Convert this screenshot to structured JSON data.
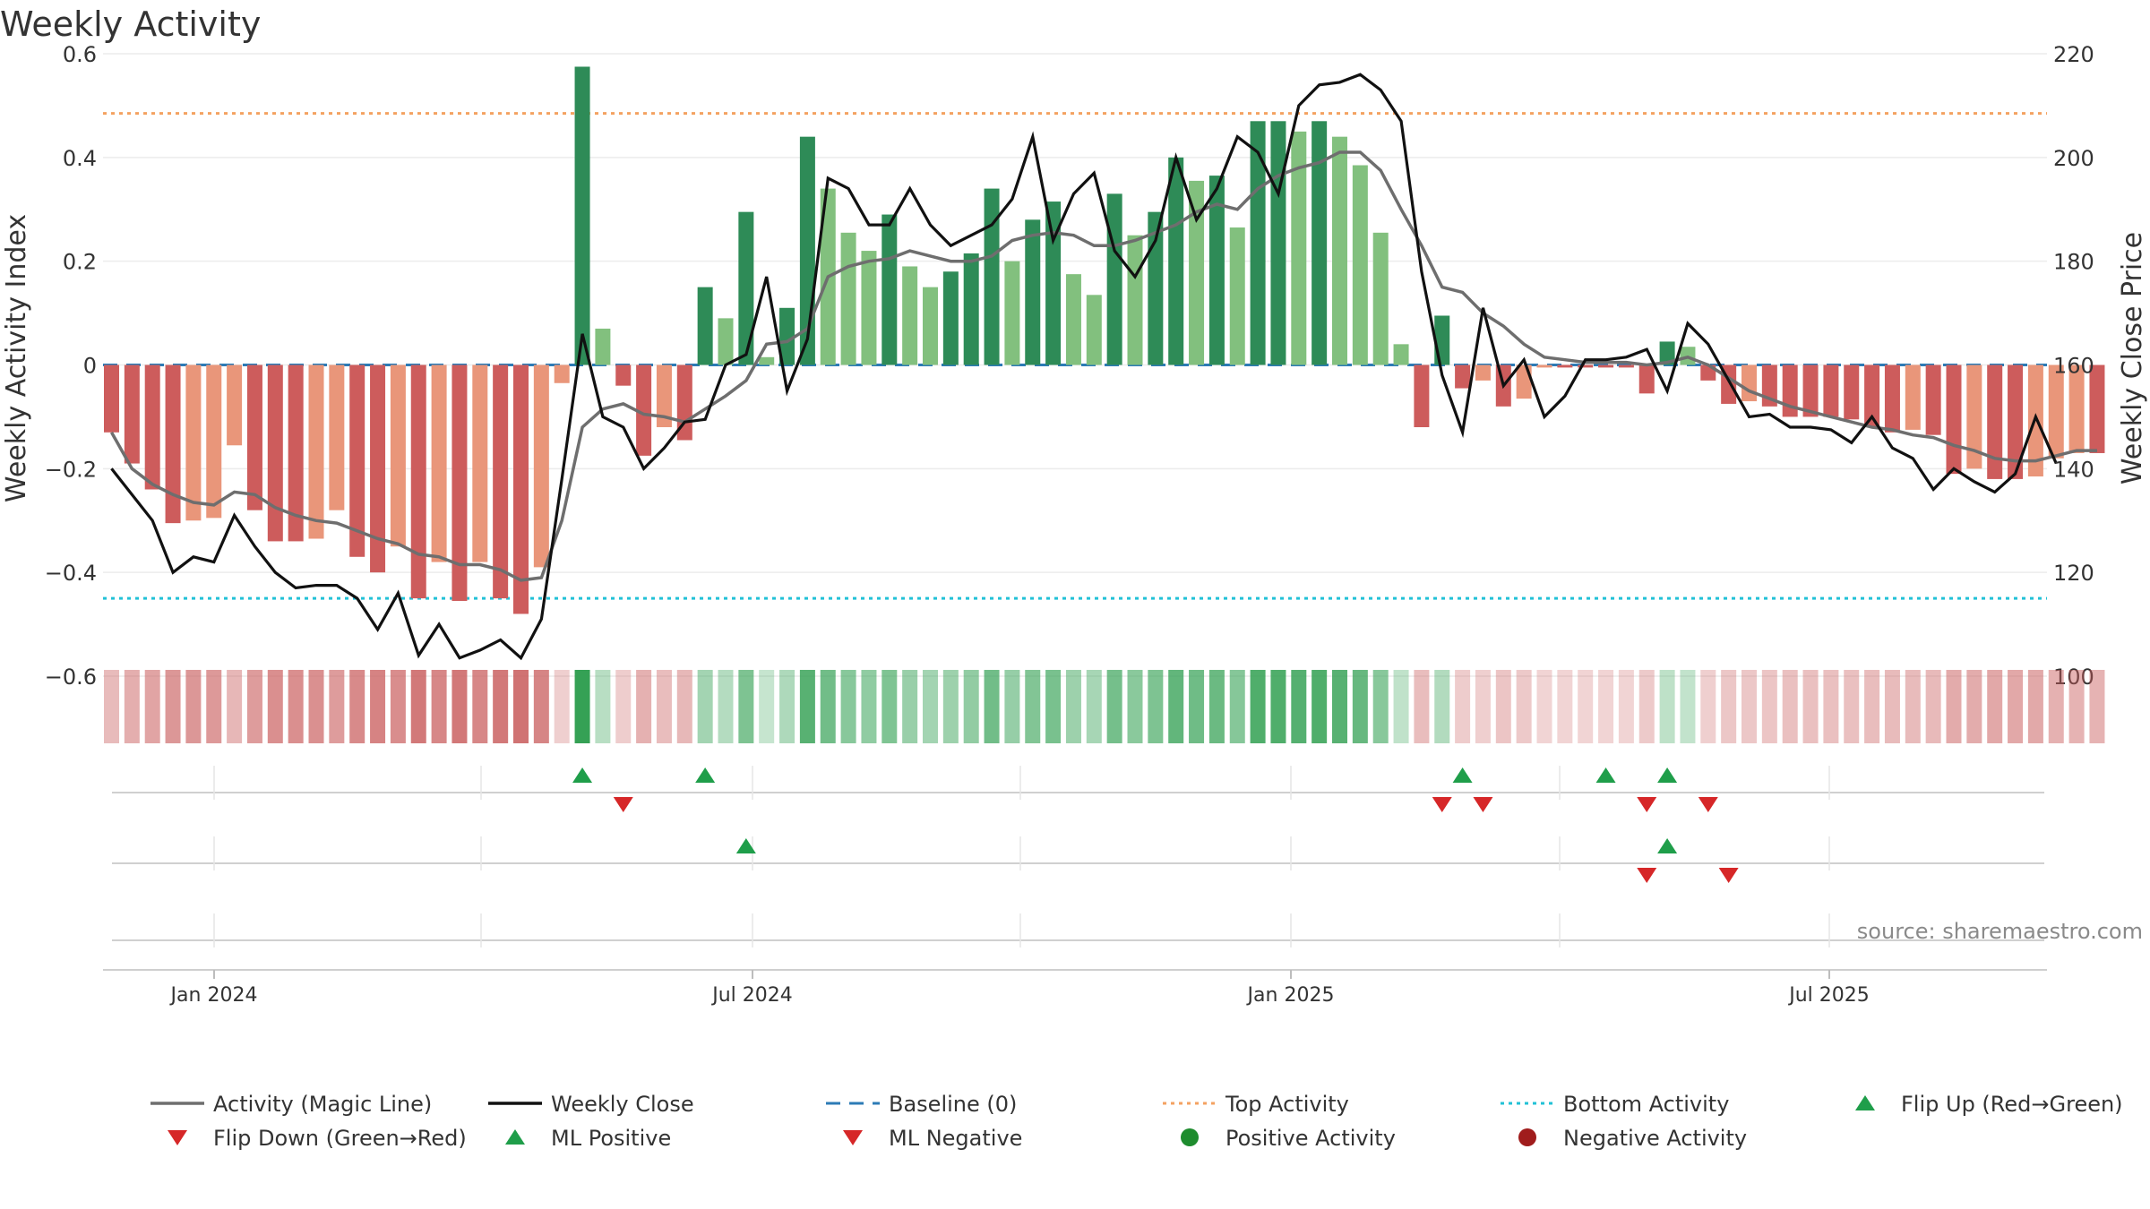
{
  "chart_data": {
    "type": "bar",
    "title": "Weekly Activity",
    "ylabel": "Weekly Activity Index",
    "y2label": "Weekly Close Price",
    "ylim": [
      -0.6,
      0.6
    ],
    "y2lim": [
      100,
      220
    ],
    "yticks": [
      "0.6",
      "0.4",
      "0.2",
      "0",
      "−0.2",
      "−0.4",
      "−0.6"
    ],
    "y2ticks": [
      "220",
      "200",
      "180",
      "160",
      "140",
      "120",
      "100"
    ],
    "xticks": [
      "Jan 2024",
      "Jul 2024",
      "Jan 2025",
      "Jul 2025"
    ],
    "source_text": "source: sharemaestro.com",
    "top_activity": 0.485,
    "bottom_activity": -0.45,
    "series": [
      {
        "name": "Activity",
        "values": [
          -0.13,
          -0.19,
          -0.24,
          -0.305,
          -0.3,
          -0.295,
          -0.155,
          -0.28,
          -0.34,
          -0.34,
          -0.335,
          -0.28,
          -0.37,
          -0.4,
          -0.35,
          -0.45,
          -0.38,
          -0.455,
          -0.38,
          -0.45,
          -0.48,
          -0.39,
          -0.035,
          0.575,
          0.07,
          -0.04,
          -0.175,
          -0.12,
          -0.145,
          0.15,
          0.09,
          0.295,
          0.015,
          0.11,
          0.44,
          0.34,
          0.255,
          0.22,
          0.29,
          0.19,
          0.15,
          0.18,
          0.215,
          0.34,
          0.2,
          0.28,
          0.315,
          0.175,
          0.135,
          0.33,
          0.25,
          0.295,
          0.4,
          0.355,
          0.365,
          0.265,
          0.47,
          0.47,
          0.45,
          0.47,
          0.44,
          0.385,
          0.255,
          0.04,
          -0.12,
          0.095,
          -0.045,
          -0.03,
          -0.08,
          -0.065,
          -0.005,
          -0.005,
          -0.005,
          -0.005,
          -0.005,
          -0.055,
          0.045,
          0.035,
          -0.03,
          -0.075,
          -0.07,
          -0.08,
          -0.1,
          -0.1,
          -0.1,
          -0.105,
          -0.12,
          -0.13,
          -0.125,
          -0.135,
          -0.21,
          -0.2,
          -0.22,
          -0.22,
          -0.215,
          -0.18,
          -0.17,
          -0.17
        ]
      },
      {
        "name": "Weekly Close",
        "values": [
          140,
          135,
          130,
          120,
          123,
          122,
          131,
          125,
          120,
          117,
          117.5,
          117.5,
          115,
          109,
          116,
          104,
          110,
          103.5,
          105,
          107,
          103.5,
          111,
          138,
          166,
          150,
          148,
          140,
          144,
          149,
          149.5,
          160,
          162,
          177,
          155,
          165,
          196,
          194,
          187,
          187,
          194,
          187,
          183,
          185,
          187,
          192,
          204,
          184,
          193,
          197,
          182,
          177,
          184,
          200,
          188,
          194,
          204,
          201,
          193,
          210,
          214,
          214.5,
          216,
          213,
          207,
          178,
          158,
          147,
          171,
          156,
          161,
          150,
          154,
          161,
          161,
          161.5,
          163,
          155,
          168,
          164,
          157,
          150,
          150.5,
          148,
          148,
          147.5,
          145,
          150,
          144,
          142,
          136,
          140,
          137.5,
          135.5,
          139,
          150,
          141
        ]
      },
      {
        "name": "Activity (Magic Line)",
        "values": [
          -0.13,
          -0.2,
          -0.23,
          -0.25,
          -0.265,
          -0.27,
          -0.245,
          -0.25,
          -0.275,
          -0.29,
          -0.3,
          -0.305,
          -0.32,
          -0.335,
          -0.345,
          -0.365,
          -0.37,
          -0.385,
          -0.385,
          -0.395,
          -0.415,
          -0.41,
          -0.3,
          -0.12,
          -0.085,
          -0.075,
          -0.095,
          -0.1,
          -0.11,
          -0.085,
          -0.06,
          -0.03,
          0.04,
          0.045,
          0.07,
          0.17,
          0.19,
          0.2,
          0.205,
          0.22,
          0.21,
          0.2,
          0.2,
          0.21,
          0.24,
          0.25,
          0.255,
          0.25,
          0.23,
          0.23,
          0.24,
          0.255,
          0.27,
          0.295,
          0.31,
          0.3,
          0.34,
          0.365,
          0.38,
          0.39,
          0.41,
          0.41,
          0.375,
          0.3,
          0.23,
          0.15,
          0.14,
          0.1,
          0.075,
          0.04,
          0.015,
          0.01,
          0.005,
          0.005,
          0.005,
          0.0,
          0.005,
          0.015,
          0.0,
          -0.025,
          -0.05,
          -0.065,
          -0.08,
          -0.09,
          -0.1,
          -0.11,
          -0.12,
          -0.125,
          -0.135,
          -0.14,
          -0.155,
          -0.165,
          -0.18,
          -0.185,
          -0.185,
          -0.175,
          -0.165,
          -0.165
        ]
      }
    ],
    "signals": {
      "flip_up": [
        23,
        29,
        66,
        73,
        76
      ],
      "flip_down": [
        25,
        65,
        67,
        75,
        78
      ],
      "ml_positive": [
        31,
        76
      ],
      "ml_negative": [
        75,
        79
      ]
    },
    "legend": [
      {
        "label": "Activity (Magic Line)",
        "marker": "line-gray"
      },
      {
        "label": "Weekly Close",
        "marker": "line-black"
      },
      {
        "label": "Baseline (0)",
        "marker": "dash-blue"
      },
      {
        "label": "Top Activity",
        "marker": "dot-orange"
      },
      {
        "label": "Bottom Activity",
        "marker": "dot-cyan"
      },
      {
        "label": "Flip Up (Red→Green)",
        "marker": "tri-up-green"
      },
      {
        "label": "Flip Down (Green→Red)",
        "marker": "tri-down-red"
      },
      {
        "label": "ML Positive",
        "marker": "tri-up-green"
      },
      {
        "label": "ML Negative",
        "marker": "tri-down-red"
      },
      {
        "label": "Positive Activity",
        "marker": "circle-green"
      },
      {
        "label": "Negative Activity",
        "marker": "circle-darkred"
      }
    ],
    "colors": {
      "pos_dark": "#2e8b57",
      "pos_light": "#82c07e",
      "neg_dark": "#cd5c5c",
      "neg_light": "#e9967a",
      "close_line": "#111111",
      "magic_line": "#6e6e6e",
      "baseline": "#2c7bb6",
      "top_line": "#f4a261",
      "bottom_line": "#22c1d6",
      "up_marker": "#1f9e4a",
      "down_marker": "#d62728",
      "pos_dot": "#1e8c2e",
      "neg_dot": "#a01c1c"
    }
  }
}
